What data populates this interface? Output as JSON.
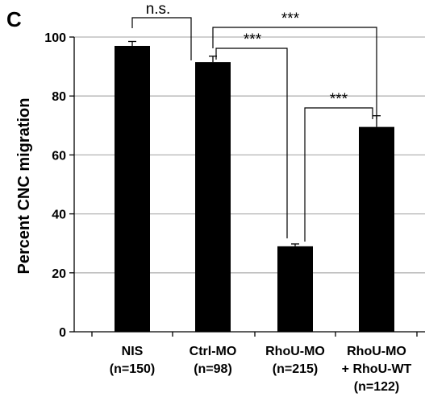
{
  "panel_label": "C",
  "chart_data": {
    "type": "bar",
    "ylabel": "Percent CNC migration",
    "ylim": [
      0,
      100
    ],
    "yticks": [
      0,
      20,
      40,
      60,
      80,
      100
    ],
    "grid": true,
    "categories": [
      {
        "name": "NIS",
        "n": "(n=150)"
      },
      {
        "name": "Ctrl-MO",
        "n": "(n=98)"
      },
      {
        "name": "RhoU-MO",
        "n": "(n=215)"
      },
      {
        "name": "RhoU-MO",
        "name2": "+ RhoU-WT",
        "n": "(n=122)"
      }
    ],
    "values": [
      97,
      91.5,
      29,
      69.5
    ],
    "errors": [
      1.5,
      2.0,
      0.8,
      3.8
    ],
    "bar_color": "#000000",
    "grid_color": "#b3b3b3",
    "significance": [
      {
        "from": 0,
        "to": 1,
        "label": "n.s."
      },
      {
        "from": 1,
        "to": 3,
        "label": "***"
      },
      {
        "from": 1,
        "to": 2,
        "label": "***"
      },
      {
        "from": 2,
        "to": 3,
        "label": "***"
      }
    ]
  }
}
